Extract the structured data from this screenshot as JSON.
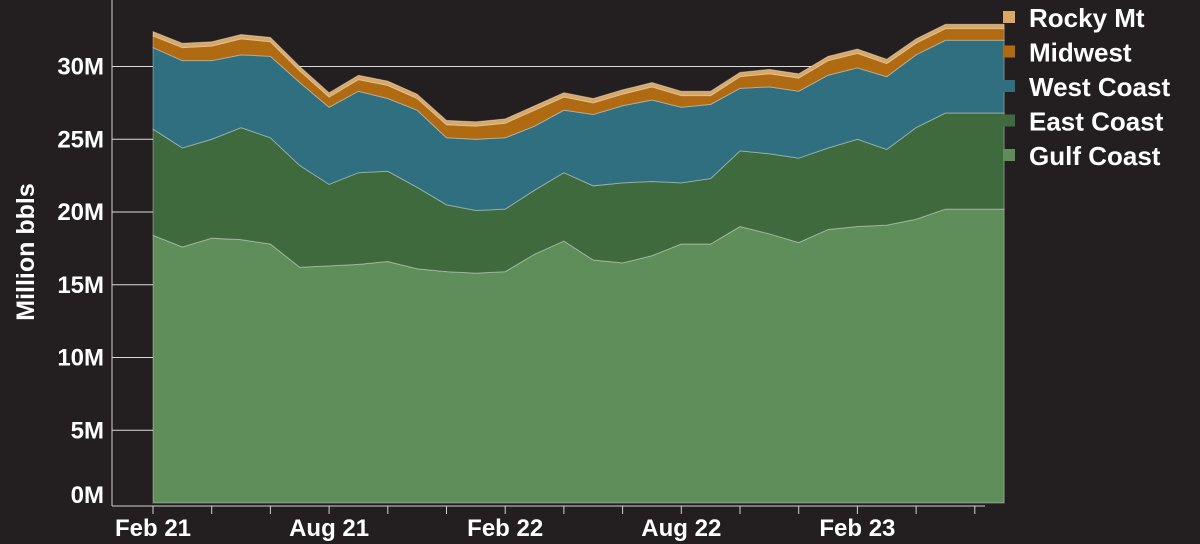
{
  "chart_data": {
    "type": "area",
    "stacked": true,
    "title": "",
    "xlabel": "",
    "ylabel": "Million bbls",
    "ylim": [
      0,
      34
    ],
    "yticks": [
      0,
      5,
      10,
      15,
      20,
      25,
      30
    ],
    "ytick_labels": [
      "0M",
      "5M",
      "10M",
      "15M",
      "20M",
      "25M",
      "30M"
    ],
    "x": [
      "2021-02",
      "2021-03",
      "2021-04",
      "2021-05",
      "2021-06",
      "2021-07",
      "2021-08",
      "2021-09",
      "2021-10",
      "2021-11",
      "2021-12",
      "2022-01",
      "2022-02",
      "2022-03",
      "2022-04",
      "2022-05",
      "2022-06",
      "2022-07",
      "2022-08",
      "2022-09",
      "2022-10",
      "2022-11",
      "2022-12",
      "2023-01",
      "2023-02",
      "2023-03",
      "2023-04",
      "2023-05",
      "2023-06",
      "2023-07"
    ],
    "xtick_labels": [
      "Feb 21",
      "Aug 21",
      "Feb 22",
      "Aug 22",
      "Feb 23"
    ],
    "grid": true,
    "legend_position": "top-right",
    "series": [
      {
        "name": "Gulf Coast",
        "color": "#5f8e5b",
        "values": [
          18.4,
          17.6,
          18.2,
          18.1,
          17.8,
          16.2,
          16.3,
          16.4,
          16.6,
          16.1,
          15.9,
          15.8,
          15.9,
          17.1,
          18.0,
          16.7,
          16.5,
          17.0,
          17.8,
          17.8,
          19.0,
          18.5,
          17.9,
          18.8,
          19.0,
          19.1,
          19.5,
          20.2,
          20.2,
          20.2
        ]
      },
      {
        "name": "East Coast",
        "color": "#3e6a3e",
        "values": [
          7.3,
          6.8,
          6.8,
          7.7,
          7.3,
          7.0,
          5.6,
          6.3,
          6.2,
          5.6,
          4.6,
          4.3,
          4.3,
          4.4,
          4.7,
          5.1,
          5.5,
          5.1,
          4.2,
          4.5,
          5.2,
          5.5,
          5.8,
          5.6,
          6.0,
          5.2,
          6.3,
          6.6,
          6.6,
          6.6
        ]
      },
      {
        "name": "West Coast",
        "color": "#2f6f80",
        "values": [
          5.6,
          6.0,
          5.4,
          5.0,
          5.6,
          5.7,
          5.3,
          5.6,
          5.0,
          5.3,
          4.6,
          4.9,
          4.9,
          4.4,
          4.3,
          4.9,
          5.3,
          5.6,
          5.2,
          5.1,
          4.3,
          4.6,
          4.6,
          5.0,
          4.9,
          5.0,
          5.0,
          5.0,
          5.0,
          5.0
        ]
      },
      {
        "name": "Midwest",
        "color": "#b06a12",
        "values": [
          0.8,
          0.9,
          1.0,
          1.1,
          1.0,
          0.8,
          0.7,
          0.8,
          0.9,
          0.8,
          0.9,
          0.9,
          1.0,
          1.1,
          0.9,
          0.8,
          0.8,
          0.9,
          0.8,
          0.6,
          0.8,
          0.9,
          0.9,
          1.0,
          1.0,
          0.9,
          0.8,
          0.8,
          0.8,
          0.8
        ]
      },
      {
        "name": "Rocky Mt",
        "color": "#d9a866",
        "values": [
          0.3,
          0.3,
          0.3,
          0.3,
          0.3,
          0.3,
          0.3,
          0.3,
          0.3,
          0.3,
          0.3,
          0.3,
          0.3,
          0.3,
          0.3,
          0.3,
          0.3,
          0.3,
          0.3,
          0.3,
          0.3,
          0.3,
          0.3,
          0.3,
          0.3,
          0.3,
          0.3,
          0.3,
          0.3,
          0.3
        ]
      }
    ]
  }
}
